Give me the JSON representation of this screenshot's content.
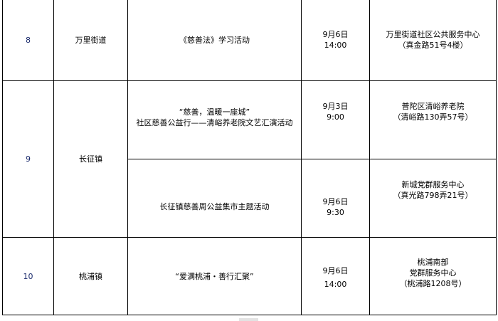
{
  "rows": [
    {
      "no": "8",
      "town": "万里街道",
      "activity": [
        "《慈善法》学习活动"
      ],
      "date": "9月6日",
      "time": "14:00",
      "place": [
        "万里街道社区公共服务中心",
        "（真金路51号4楼）"
      ]
    },
    {
      "no": "9",
      "town": "长征镇",
      "activity": [
        "“慈善，温暖一座城”",
        "社区慈善公益行——清峪养老院文艺汇演活动"
      ],
      "date": "9月3日",
      "time": "9:00",
      "place": [
        "普陀区清峪养老院",
        "（清峪路130弄57号）"
      ]
    },
    {
      "activity": [
        "长征镇慈善周公益集市主题活动"
      ],
      "date": "9月6日",
      "time": "9:30",
      "place": [
        "新城党群服务中心",
        "（真光路798弄21号）"
      ]
    },
    {
      "no": "10",
      "town": "桃浦镇",
      "activity": [
        "“爱满桃浦・善行汇聚”"
      ],
      "date": "9月6日",
      "time": "14:00",
      "place": [
        "桃浦南部",
        "党群服务中心",
        "（桃浦路1208号）"
      ]
    }
  ]
}
